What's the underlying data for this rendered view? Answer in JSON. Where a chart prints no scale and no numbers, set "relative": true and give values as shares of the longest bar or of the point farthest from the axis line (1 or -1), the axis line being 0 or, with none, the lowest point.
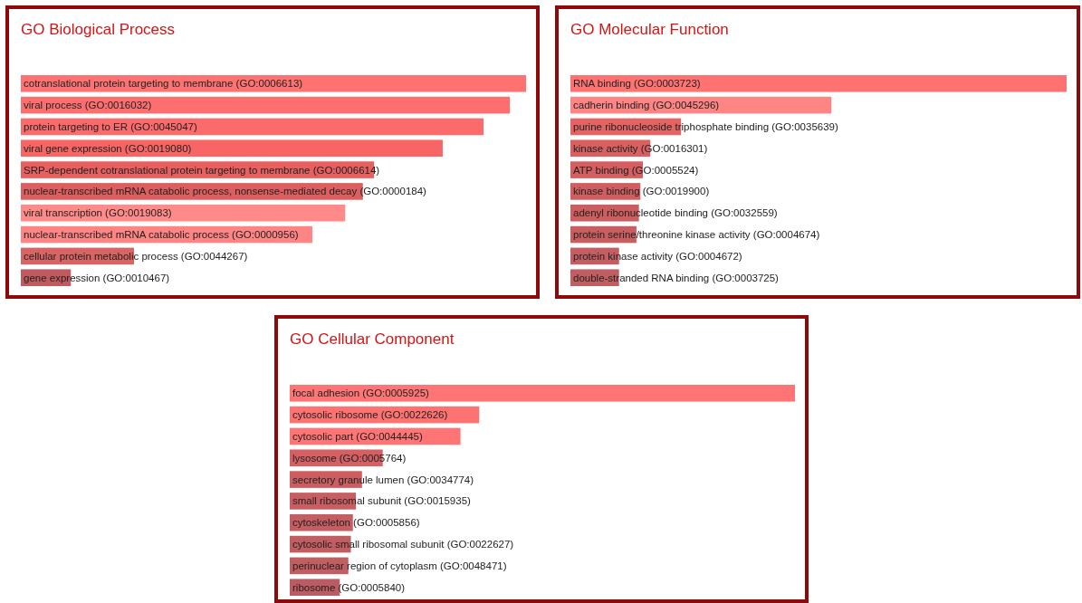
{
  "chart_data": [
    {
      "type": "bar",
      "orientation": "horizontal",
      "relative": true,
      "title": "GO Biological Process",
      "categories": [
        "cotranslational protein targeting to membrane (GO:0006613)",
        "viral process (GO:0016032)",
        "protein targeting to ER (GO:0045047)",
        "viral gene expression (GO:0019080)",
        "SRP-dependent cotranslational protein targeting to membrane (GO:0006614)",
        "nuclear-transcribed mRNA catabolic process, nonsense-mediated decay (GO:0000184)",
        "viral transcription (GO:0019083)",
        "nuclear-transcribed mRNA catabolic process (GO:0000956)",
        "cellular protein metabolic process (GO:0044267)",
        "gene expression (GO:0010467)"
      ],
      "values": [
        1,
        0.968,
        0.916,
        0.835,
        0.699,
        0.677,
        0.642,
        0.577,
        0.224,
        0.099
      ],
      "colors": [
        "#ff7272",
        "#fd6f6f",
        "#fb6b6b",
        "#f86565",
        "#e85f5f",
        "#dc5e5e",
        "#ff8a8a",
        "#ff8585",
        "#d86464",
        "#c05a5e"
      ]
    },
    {
      "type": "bar",
      "orientation": "horizontal",
      "relative": true,
      "title": "GO Molecular Function",
      "categories": [
        "RNA binding (GO:0003723)",
        "cadherin binding (GO:0045296)",
        "purine ribonucleoside triphosphate binding (GO:0035639)",
        "kinase activity (GO:0016301)",
        "ATP binding (GO:0005524)",
        "kinase binding (GO:0019900)",
        "adenyl ribonucleotide binding (GO:0032559)",
        "protein serine/threonine kinase activity (GO:0004674)",
        "protein kinase activity (GO:0004672)",
        "double-stranded RNA binding (GO:0003725)"
      ],
      "values": [
        1,
        0.526,
        0.223,
        0.161,
        0.146,
        0.141,
        0.138,
        0.133,
        0.098,
        0.098
      ],
      "colors": [
        "#ff7272",
        "#ff8585",
        "#e46464",
        "#d86060",
        "#d45e60",
        "#d05e60",
        "#cc5e60",
        "#c85e60",
        "#c45e62",
        "#c05e62"
      ]
    },
    {
      "type": "bar",
      "orientation": "horizontal",
      "relative": true,
      "title": "GO Cellular Component",
      "categories": [
        "focal adhesion (GO:0005925)",
        "cytosolic ribosome (GO:0022626)",
        "cytosolic part (GO:0044445)",
        "lysosome (GO:0005764)",
        "secretory granule lumen (GO:0034774)",
        "small ribosomal subunit (GO:0015935)",
        "cytoskeleton (GO:0005856)",
        "cytosolic small ribosomal subunit (GO:0022627)",
        "perinuclear region of cytoplasm (GO:0048471)",
        "ribosome (GO:0005840)"
      ],
      "values": [
        1,
        0.375,
        0.338,
        0.184,
        0.143,
        0.131,
        0.125,
        0.121,
        0.116,
        0.099
      ],
      "colors": [
        "#ff7575",
        "#ff7272",
        "#ff7474",
        "#d46064",
        "#cc5e62",
        "#c85e62",
        "#c45e62",
        "#c25e62",
        "#c05e62",
        "#bc5c62"
      ]
    }
  ]
}
